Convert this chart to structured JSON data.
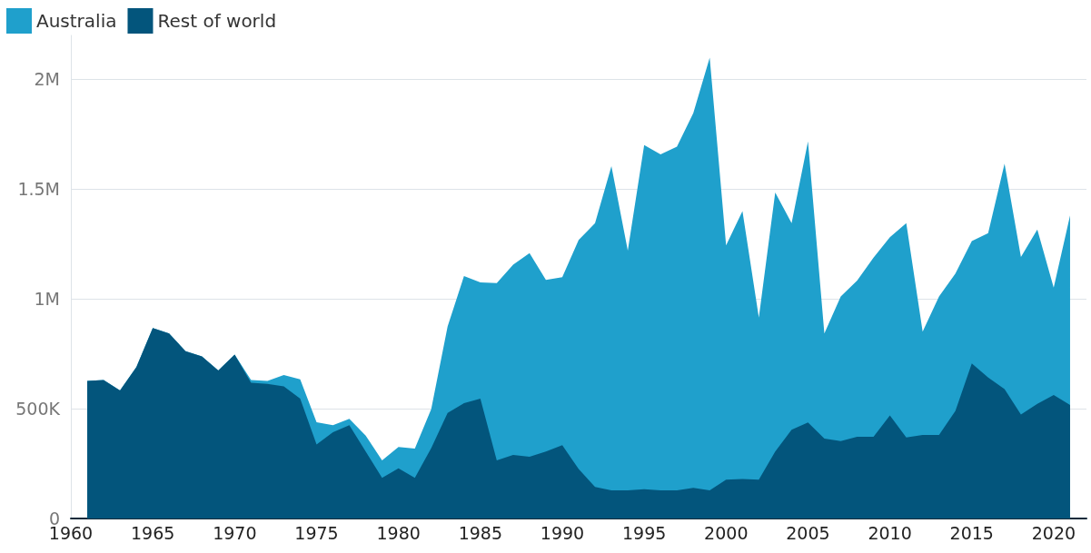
{
  "chart_data": {
    "type": "area",
    "stacked": true,
    "legend": "top left",
    "grid": "y",
    "marker": "none",
    "x": [
      1961,
      1962,
      1963,
      1964,
      1965,
      1966,
      1967,
      1968,
      1969,
      1970,
      1971,
      1972,
      1973,
      1974,
      1975,
      1976,
      1977,
      1978,
      1979,
      1980,
      1981,
      1982,
      1983,
      1984,
      1985,
      1986,
      1987,
      1988,
      1989,
      1990,
      1991,
      1992,
      1993,
      1994,
      1995,
      1996,
      1997,
      1998,
      1999,
      2000,
      2001,
      2002,
      2003,
      2004,
      2005,
      2006,
      2007,
      2008,
      2009,
      2010,
      2011,
      2012,
      2013,
      2014,
      2015,
      2016,
      2017,
      2018,
      2019,
      2020,
      2021
    ],
    "xlim": [
      1960,
      2022
    ],
    "xticks": [
      1960,
      1965,
      1970,
      1975,
      1980,
      1985,
      1990,
      1995,
      2000,
      2005,
      2010,
      2015,
      2020
    ],
    "ylim": [
      0,
      2200000
    ],
    "yticks": [
      0,
      {
        "value": 500000,
        "label": "500K"
      },
      {
        "value": 1000000,
        "label": "1M"
      },
      {
        "value": 1500000,
        "label": "1.5M"
      },
      {
        "value": 2000000,
        "label": "2M"
      }
    ],
    "series": [
      {
        "name": "Rest of world",
        "color": "#03557c",
        "values": [
          626000,
          631000,
          583000,
          690000,
          867000,
          843000,
          762000,
          738000,
          674000,
          746000,
          618000,
          613000,
          602000,
          546000,
          337000,
          393000,
          425000,
          305000,
          185000,
          228000,
          185000,
          321000,
          481000,
          525000,
          546000,
          265000,
          289000,
          281000,
          305000,
          334000,
          225000,
          144000,
          128000,
          128000,
          133000,
          128000,
          128000,
          140000,
          128000,
          177000,
          180000,
          177000,
          305000,
          404000,
          437000,
          364000,
          353000,
          372000,
          372000,
          469000,
          369000,
          380000,
          380000,
          490000,
          706000,
          642000,
          589000,
          473000,
          522000,
          562000,
          517000
        ]
      },
      {
        "name": "Australia",
        "color": "#1fa0cc",
        "values": [
          0,
          0,
          0,
          0,
          0,
          0,
          0,
          0,
          0,
          0,
          13000,
          13000,
          51000,
          88000,
          101000,
          32000,
          29000,
          72000,
          80000,
          98000,
          133000,
          177000,
          394000,
          579000,
          529000,
          807000,
          867000,
          928000,
          782000,
          765000,
          1043000,
          1201000,
          1477000,
          1092000,
          1568000,
          1530000,
          1565000,
          1706000,
          1971000,
          1067000,
          1220000,
          738000,
          1180000,
          941000,
          1280000,
          479000,
          658000,
          711000,
          816000,
          812000,
          976000,
          471000,
          631000,
          625000,
          557000,
          658000,
          1027000,
          718000,
          794000,
          489000,
          863000
        ]
      }
    ]
  }
}
